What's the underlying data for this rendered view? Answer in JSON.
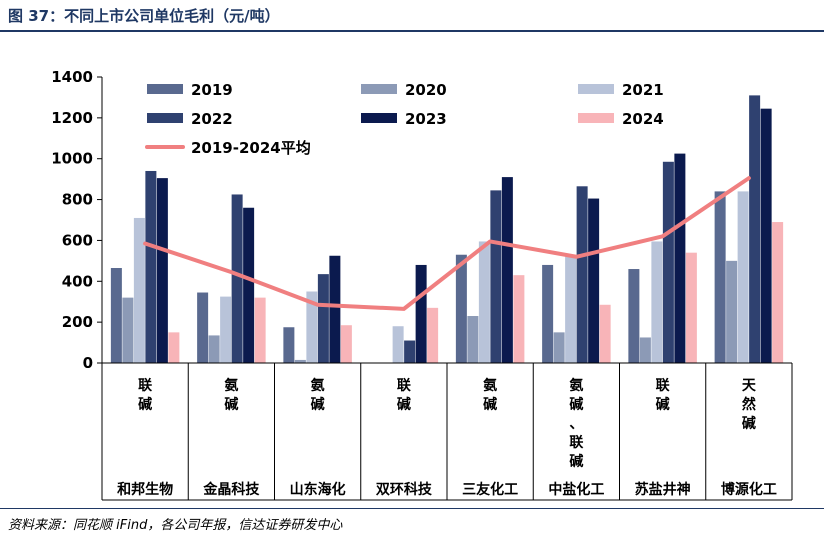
{
  "figure": {
    "title": "图 37：不同上市公司单位毛利（元/吨）",
    "source": "资料来源：同花顺 iFind，各公司年报，信达证券研发中心"
  },
  "colors": {
    "2019": "#59698f",
    "2020": "#8c9ab6",
    "2021": "#b8c3d9",
    "2022": "#2f4170",
    "2023": "#0b1a4e",
    "2024": "#f8b4b8",
    "avg": "#f07f80"
  },
  "chart_data": {
    "type": "bar",
    "title": "不同上市公司单位毛利（元/吨）",
    "ylim": [
      0,
      1400
    ],
    "yticks": [
      0,
      200,
      400,
      600,
      800,
      1000,
      1200,
      1400
    ],
    "categories": [
      "和邦生物",
      "金晶科技",
      "山东海化",
      "双环科技",
      "三友化工",
      "中盐化工",
      "苏盐井神",
      "博源化工"
    ],
    "processes": [
      "联碱",
      "氨碱",
      "氨碱",
      "联碱",
      "氨碱",
      "氨碱、联碱",
      "联碱",
      "天然碱"
    ],
    "series": [
      {
        "name": "2019",
        "values": [
          465,
          345,
          175,
          null,
          530,
          480,
          460,
          840
        ]
      },
      {
        "name": "2020",
        "values": [
          320,
          135,
          15,
          null,
          230,
          150,
          125,
          500
        ]
      },
      {
        "name": "2021",
        "values": [
          710,
          325,
          350,
          180,
          595,
          525,
          595,
          840
        ]
      },
      {
        "name": "2022",
        "values": [
          940,
          825,
          435,
          110,
          845,
          865,
          985,
          1310
        ]
      },
      {
        "name": "2023",
        "values": [
          905,
          760,
          525,
          480,
          910,
          805,
          1025,
          1245
        ]
      },
      {
        "name": "2024",
        "values": [
          150,
          320,
          185,
          270,
          430,
          285,
          540,
          690
        ]
      }
    ],
    "line": {
      "name": "2019-2024平均",
      "values": [
        585,
        445,
        285,
        265,
        595,
        520,
        620,
        905
      ]
    }
  }
}
